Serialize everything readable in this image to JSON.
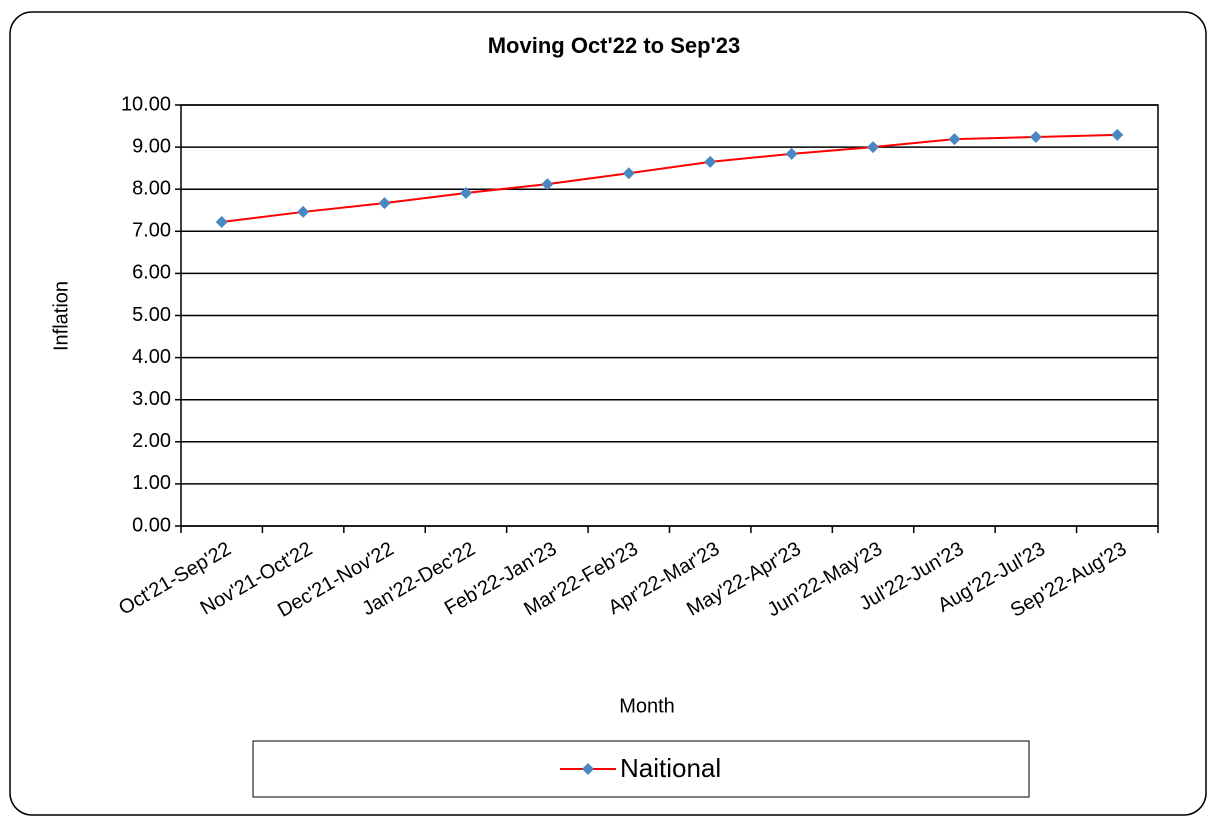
{
  "chart_data": {
    "type": "line",
    "title": "Moving Oct'22 to Sep'23",
    "x_label": "Month",
    "y_label": "Inflation",
    "categories": [
      "Oct'21-Sep'22",
      "Nov'21-Oct'22",
      "Dec'21-Nov'22",
      "Jan'22-Dec'22",
      "Feb'22-Jan'23",
      "Mar'22-Feb'23",
      "Apr'22-Mar'23",
      "May'22-Apr'23",
      "Jun'22-May'23",
      "Jul'22-Jun'23",
      "Aug'22-Jul'23",
      "Sep'22-Aug'23"
    ],
    "series": [
      {
        "name": "Naitional",
        "color": "#ff0000",
        "marker_color": "#4a86c0",
        "values": [
          7.22,
          7.46,
          7.67,
          7.91,
          8.12,
          8.38,
          8.65,
          8.84,
          9.0,
          9.19,
          9.24,
          9.29
        ]
      }
    ],
    "ylim": [
      0,
      10
    ],
    "yticks": [
      {
        "value": 0,
        "label": "0.00"
      },
      {
        "value": 1,
        "label": "1.00"
      },
      {
        "value": 2,
        "label": "2.00"
      },
      {
        "value": 3,
        "label": "3.00"
      },
      {
        "value": 4,
        "label": "4.00"
      },
      {
        "value": 5,
        "label": "5.00"
      },
      {
        "value": 6,
        "label": "6.00"
      },
      {
        "value": 7,
        "label": "7.00"
      },
      {
        "value": 8,
        "label": "8.00"
      },
      {
        "value": 9,
        "label": "9.00"
      },
      {
        "value": 10,
        "label": "10.00"
      }
    ],
    "grid": true,
    "legend": "bottom"
  }
}
